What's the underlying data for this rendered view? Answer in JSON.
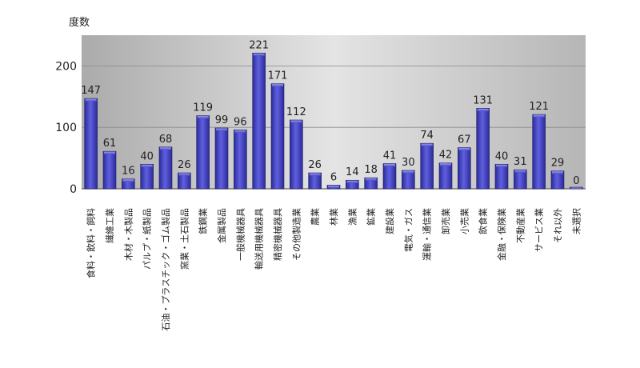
{
  "chart_data": {
    "type": "bar",
    "ylabel": "度数",
    "ylim": [
      0,
      250
    ],
    "yticks": [
      0,
      100,
      200
    ],
    "grid": true,
    "bar_color": "#4040c0",
    "categories": [
      "食料・飲料・飼料",
      "繊維工業",
      "木材・木製品",
      "パルプ・紙製品",
      "石油・プラスチック・ゴム製品",
      "窯業・土石製品",
      "鉄鋼業",
      "金属製品",
      "一般機械器具",
      "輸送用機械器具",
      "精密機械器具",
      "その他製造業",
      "農業",
      "林業",
      "漁業",
      "鉱業",
      "建設業",
      "電気・ガス",
      "運輸・通信業",
      "卸売業",
      "小売業",
      "飲食業",
      "金融・保険業",
      "不動産業",
      "サービス業",
      "それ以外",
      "未選択"
    ],
    "values": [
      147,
      61,
      16,
      40,
      68,
      26,
      119,
      99,
      96,
      221,
      171,
      112,
      26,
      6,
      14,
      18,
      41,
      30,
      74,
      42,
      67,
      131,
      40,
      31,
      121,
      29,
      0
    ]
  }
}
